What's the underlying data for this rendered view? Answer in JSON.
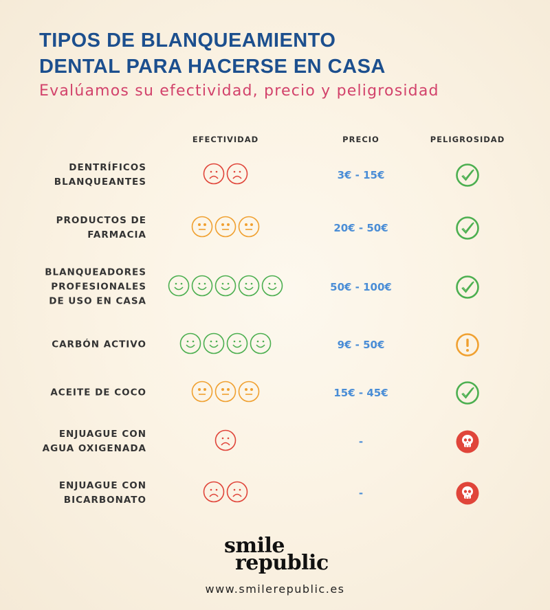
{
  "title_lines": [
    "TIPOS DE BLANQUEAMIENTO",
    "DENTAL PARA HACERSE EN CASA"
  ],
  "subtitle": "Evalúamos su efectividad, precio y peligrosidad",
  "headers": {
    "effectiveness": "EFECTIVIDAD",
    "price": "PRECIO",
    "danger": "PELIGROSIDAD"
  },
  "colors": {
    "title": "#1c4f8e",
    "subtitle": "#d2426b",
    "price": "#4a8dd6",
    "good": "#4caf50",
    "medium": "#f0a030",
    "bad": "#e0453a"
  },
  "rows": [
    {
      "label": [
        "DENTRÍFICOS",
        "BLANQUEANTES"
      ],
      "face": "sad",
      "count": 2,
      "price": "3€ - 15€",
      "danger": "check-icon"
    },
    {
      "label": [
        "PRODUCTOS DE",
        "FARMACIA"
      ],
      "face": "neutral",
      "count": 3,
      "price": "20€ - 50€",
      "danger": "check-icon"
    },
    {
      "label": [
        "BLANQUEADORES",
        "PROFESIONALES",
        "DE USO EN CASA"
      ],
      "face": "happy",
      "count": 5,
      "price": "50€ - 100€",
      "danger": "check-icon"
    },
    {
      "label": [
        "CARBÓN ACTIVO"
      ],
      "face": "happy",
      "count": 4,
      "price": "9€ - 50€",
      "danger": "warning-icon"
    },
    {
      "label": [
        "ACEITE DE COCO"
      ],
      "face": "neutral",
      "count": 3,
      "price": "15€ - 45€",
      "danger": "check-icon"
    },
    {
      "label": [
        "ENJUAGUE CON",
        "AGUA OXIGENADA"
      ],
      "face": "sad",
      "count": 1,
      "price": "-",
      "danger": "skull-icon"
    },
    {
      "label": [
        "ENJUAGUE CON",
        "BICARBONATO"
      ],
      "face": "sad",
      "count": 2,
      "price": "-",
      "danger": "skull-icon"
    }
  ],
  "logo": {
    "line1": "smile",
    "line2": "republic"
  },
  "url": "www.smilerepublic.es"
}
